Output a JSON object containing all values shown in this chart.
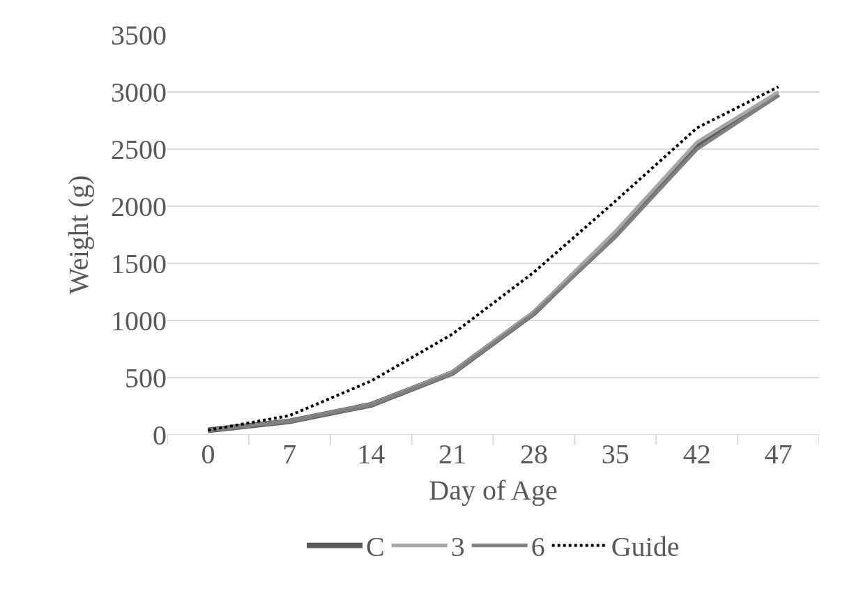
{
  "chart_data": {
    "type": "line",
    "xlabel": "Day of Age",
    "ylabel": "Weight (g)",
    "categories": [
      "0",
      "7",
      "14",
      "21",
      "28",
      "35",
      "42",
      "47"
    ],
    "series": [
      {
        "name": "C",
        "color": "#595959",
        "values": [
          40,
          118,
          262,
          542,
          1065,
          1760,
          2520,
          2980
        ]
      },
      {
        "name": "3",
        "color": "#a6a6a6",
        "values": [
          40,
          120,
          265,
          548,
          1075,
          1780,
          2560,
          3000
        ]
      },
      {
        "name": "6",
        "color": "#808080",
        "values": [
          40,
          117,
          260,
          538,
          1060,
          1730,
          2500,
          2970
        ]
      },
      {
        "name": "Guide",
        "color": "#000000",
        "line_style": "dotted",
        "values": [
          40,
          168,
          470,
          882,
          1423,
          2045,
          2685,
          3045
        ]
      }
    ],
    "ylim": [
      0,
      3500
    ],
    "yticks": [
      0,
      500,
      1000,
      1500,
      2000,
      2500,
      3000,
      3500
    ],
    "grid": "y",
    "legend": "bottom",
    "marker": "none",
    "line_style": "solid"
  }
}
